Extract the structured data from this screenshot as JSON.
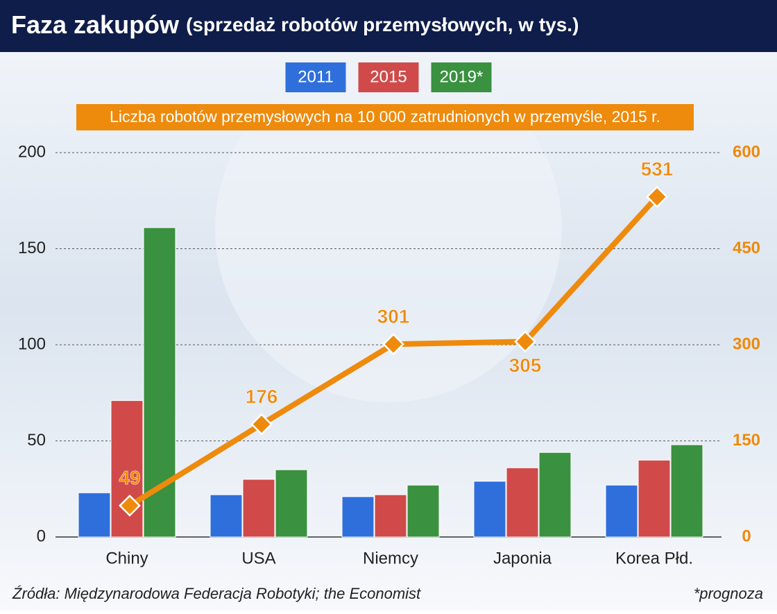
{
  "chart_data": {
    "type": "bar",
    "title": "Faza zakupów",
    "subtitle": "(sprzedaż robotów przemysłowych, w tys.)",
    "categories": [
      "Chiny",
      "USA",
      "Niemcy",
      "Japonia",
      "Korea Płd."
    ],
    "series": [
      {
        "name": "2011",
        "color": "#2f6fdc",
        "values": [
          23,
          22,
          21,
          29,
          27
        ]
      },
      {
        "name": "2015",
        "color": "#d04a4a",
        "values": [
          71,
          30,
          22,
          36,
          40
        ]
      },
      {
        "name": "2019*",
        "color": "#3a9140",
        "values": [
          161,
          35,
          27,
          44,
          48
        ]
      },
      {
        "name": "Liczba robotów przemysłowych na 10 000 zatrudnionych w przemyśle, 2015 r.",
        "type": "line",
        "axis": "y2",
        "color": "#ee8a0c",
        "values": [
          49,
          176,
          301,
          305,
          531
        ]
      }
    ],
    "ylim": [
      0,
      200
    ],
    "yticks": [
      0,
      50,
      100,
      150,
      200
    ],
    "y2lim": [
      0,
      600
    ],
    "y2ticks": [
      0,
      150,
      300,
      450,
      600
    ],
    "grid": true,
    "source": "Źródła: Międzynarodowa Federacja Robotyki; the Economist",
    "note": "*prognoza"
  }
}
